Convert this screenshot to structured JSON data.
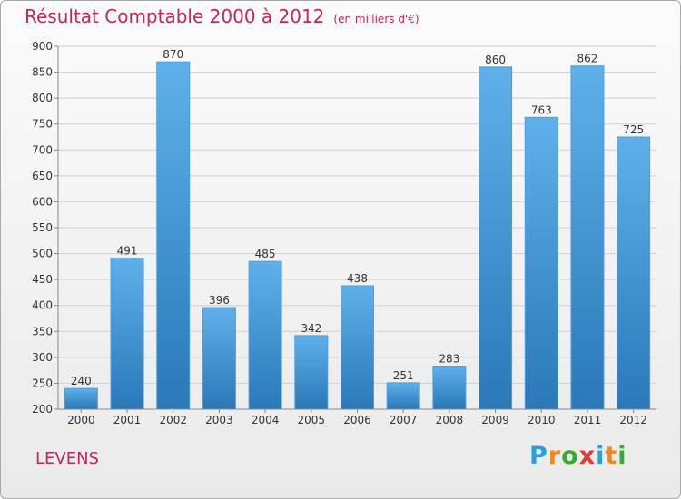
{
  "title": "Résultat Comptable 2000 à 2012",
  "subtitle": "(en milliers d'€)",
  "location": "LEVENS",
  "logo": {
    "letters": [
      "P",
      "r",
      "o",
      "x",
      "i",
      "t",
      "i"
    ],
    "colors": [
      "#2a9fd8",
      "#f08a1c",
      "#3aaa35",
      "#e53a3a",
      "#2a9fd8",
      "#f08a1c",
      "#3aaa35"
    ]
  },
  "colors": {
    "title": "#c0275a",
    "bar_top": "#5fb0ea",
    "bar_bottom": "#2a78b8",
    "grid": "#cfcfcf"
  },
  "chart_data": {
    "type": "bar",
    "title": "Résultat Comptable 2000 à 2012",
    "subtitle": "(en milliers d'€)",
    "categories": [
      "2000",
      "2001",
      "2002",
      "2003",
      "2004",
      "2005",
      "2006",
      "2007",
      "2008",
      "2009",
      "2010",
      "2011",
      "2012"
    ],
    "values": [
      240,
      491,
      870,
      396,
      485,
      342,
      438,
      251,
      283,
      860,
      763,
      862,
      725
    ],
    "ylim": [
      200,
      900
    ],
    "yticks": [
      200,
      250,
      300,
      350,
      400,
      450,
      500,
      550,
      600,
      650,
      700,
      750,
      800,
      850,
      900
    ],
    "grid": true,
    "legend": "none"
  }
}
